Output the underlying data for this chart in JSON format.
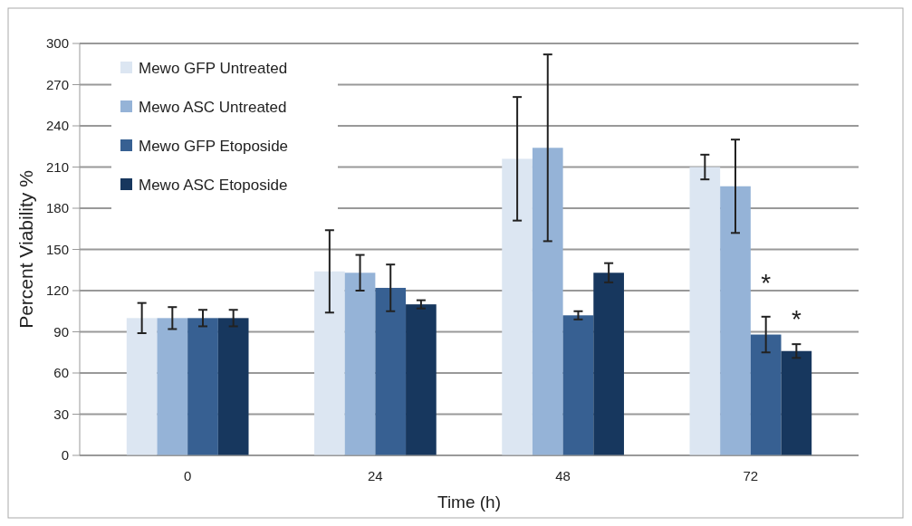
{
  "chart_data": {
    "type": "bar",
    "xlabel": "Time (h)",
    "ylabel": "Percent Viability %",
    "categories": [
      "0",
      "24",
      "48",
      "72"
    ],
    "series": [
      {
        "name": "Mewo GFP Untreated",
        "color": "#dce6f2",
        "values": [
          100,
          134,
          216,
          210
        ],
        "errors": [
          11,
          30,
          45,
          9
        ]
      },
      {
        "name": "Mewo ASC Untreated",
        "color": "#95b3d7",
        "values": [
          100,
          133,
          224,
          196
        ],
        "errors": [
          8,
          13,
          68,
          34
        ]
      },
      {
        "name": "Mewo GFP Etoposide",
        "color": "#376092",
        "values": [
          100,
          122,
          102,
          88
        ],
        "errors": [
          6,
          17,
          3,
          13
        ]
      },
      {
        "name": "Mewo ASC Etoposide",
        "color": "#17375e",
        "values": [
          100,
          110,
          133,
          76
        ],
        "errors": [
          6,
          3,
          7,
          5
        ]
      }
    ],
    "ylim": [
      0,
      300
    ],
    "yticks": [
      0,
      30,
      60,
      90,
      120,
      150,
      180,
      210,
      240,
      270,
      300
    ],
    "grid": "y",
    "legend": "top left",
    "annotations": [
      {
        "text": "*",
        "x": "72",
        "y": 132
      },
      {
        "text": "*",
        "x": "72",
        "y": 106
      }
    ]
  }
}
